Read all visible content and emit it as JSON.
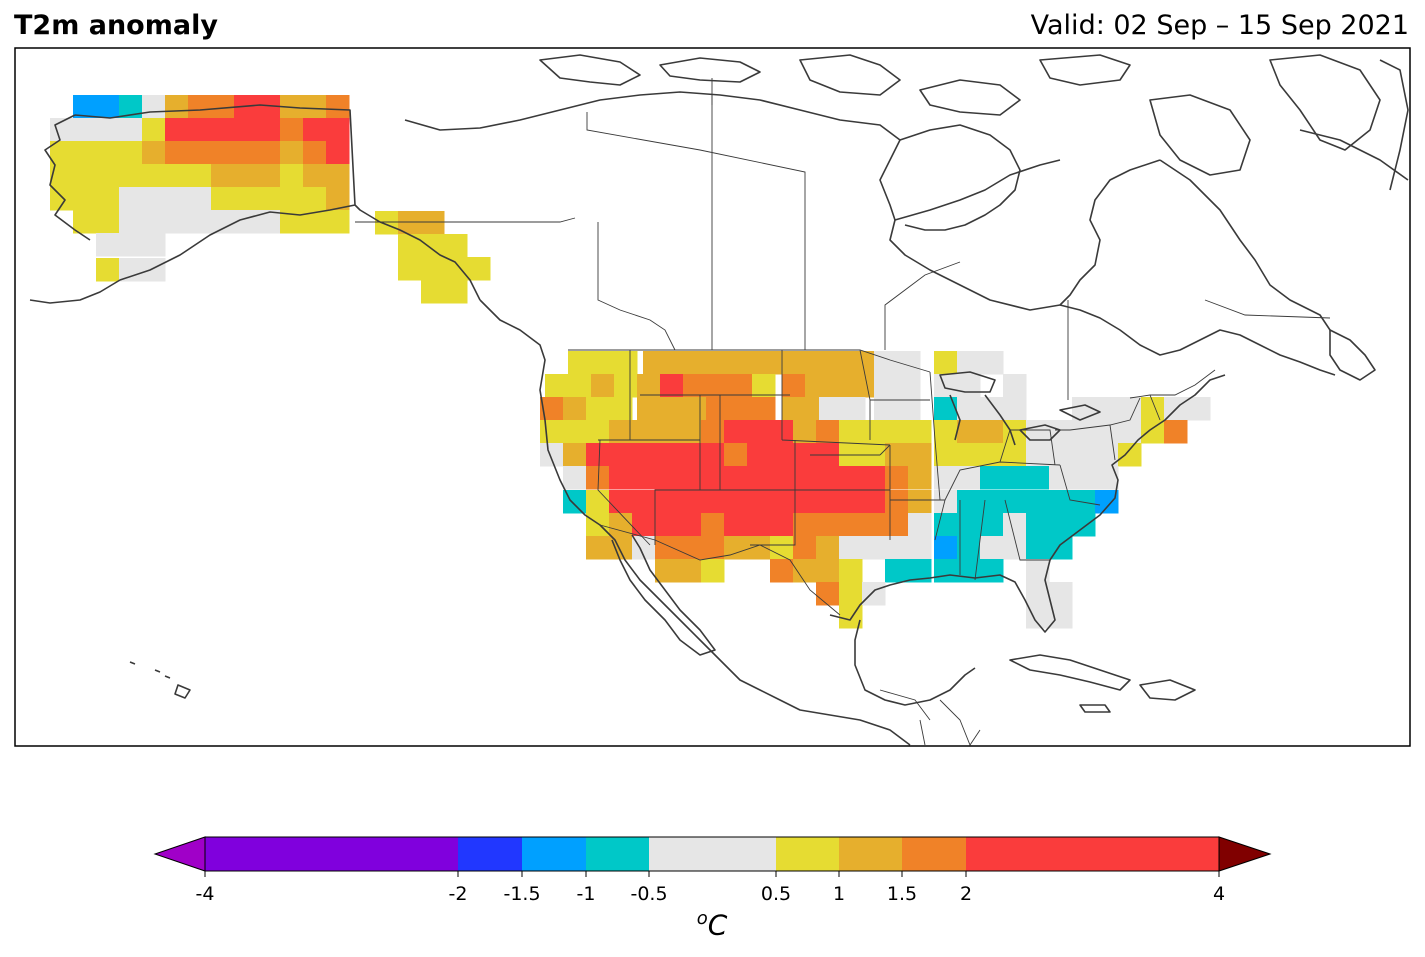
{
  "title": "T2m anomaly",
  "valid": "Valid: 02 Sep – 15 Sep 2021",
  "colorbar": {
    "unit_base": "C",
    "unit_sup": "o",
    "ticks": [
      "-4",
      "-2",
      "-1.5",
      "-1",
      "-0.5",
      "0.5",
      "1",
      "1.5",
      "2",
      "4"
    ],
    "tick_values": [
      -4,
      -2,
      -1.5,
      -1,
      -0.5,
      0.5,
      1,
      1.5,
      2,
      4
    ],
    "bins": [
      {
        "from": -4,
        "to": -2,
        "color": "#8000dd"
      },
      {
        "from": -2,
        "to": -1.5,
        "color": "#2137ff"
      },
      {
        "from": -1.5,
        "to": -1,
        "color": "#00a0ff"
      },
      {
        "from": -1,
        "to": -0.5,
        "color": "#00c8c8"
      },
      {
        "from": -0.5,
        "to": 0.5,
        "color": "#e6e6e6"
      },
      {
        "from": 0.5,
        "to": 1,
        "color": "#e6dc32"
      },
      {
        "from": 1,
        "to": 1.5,
        "color": "#e6af2d"
      },
      {
        "from": 1.5,
        "to": 2,
        "color": "#f08228"
      },
      {
        "from": 2,
        "to": 4,
        "color": "#fa3c3c"
      }
    ],
    "under_color": "#a000c8",
    "over_color": "#800000"
  }
}
